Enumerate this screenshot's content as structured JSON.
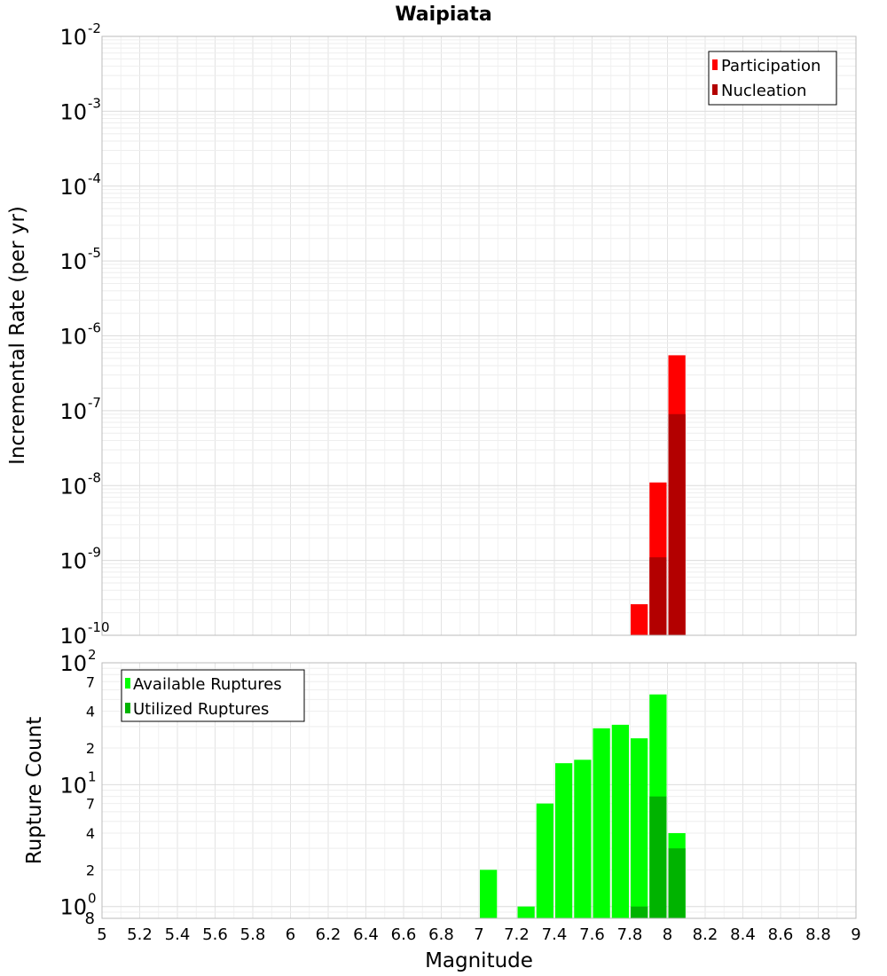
{
  "title": "Waipiata",
  "xlabel": "Magnitude",
  "x_ticks": [
    "5",
    "5.2",
    "5.4",
    "5.6",
    "5.8",
    "6",
    "6.2",
    "6.4",
    "6.6",
    "6.8",
    "7",
    "7.2",
    "7.4",
    "7.6",
    "7.8",
    "8",
    "8.2",
    "8.4",
    "8.6",
    "8.8",
    "9"
  ],
  "colors": {
    "participation": "#ff0000",
    "nucleation": "#b30000",
    "available": "#00ff00",
    "utilized": "#00b300",
    "grid": "#e6e6e6",
    "border": "#bbbbbb"
  },
  "chart_data": [
    {
      "type": "bar",
      "title": "Waipiata",
      "xlabel": "Magnitude",
      "ylabel": "Incremental Rate (per yr)",
      "xlim": [
        5,
        9
      ],
      "ylim": [
        1e-10,
        0.01
      ],
      "y_scale": "log",
      "grid": true,
      "legend_position": "top-right",
      "y_tick_exponents": [
        "-2",
        "-3",
        "-4",
        "-5",
        "-6",
        "-7",
        "-8",
        "-9",
        "-10"
      ],
      "bin_width": 0.1,
      "x": [
        7.85,
        7.95,
        8.05
      ],
      "series": [
        {
          "name": "Participation",
          "values": [
            2.6e-10,
            1.1e-08,
            5.5e-07
          ]
        },
        {
          "name": "Nucleation",
          "values": [
            0,
            1.1e-09,
            9e-08
          ]
        }
      ]
    },
    {
      "type": "bar",
      "xlabel": "Magnitude",
      "ylabel": "Rupture Count",
      "xlim": [
        5,
        9
      ],
      "ylim": [
        0.8,
        100
      ],
      "y_scale": "log",
      "grid": true,
      "legend_position": "top-left",
      "y_major_ticks": [
        {
          "value": 100,
          "exp": "2"
        },
        {
          "value": 10,
          "exp": "1"
        },
        {
          "value": 1,
          "exp": "0"
        }
      ],
      "y_minor_ticks": [
        {
          "value": 70,
          "label": "7"
        },
        {
          "value": 40,
          "label": "4"
        },
        {
          "value": 20,
          "label": "2"
        },
        {
          "value": 7,
          "label": "7"
        },
        {
          "value": 4,
          "label": "4"
        },
        {
          "value": 2,
          "label": "2"
        },
        {
          "value": 0.8,
          "label": "8"
        }
      ],
      "bin_width": 0.1,
      "x": [
        7.05,
        7.25,
        7.35,
        7.45,
        7.55,
        7.65,
        7.75,
        7.85,
        7.95,
        8.05
      ],
      "series": [
        {
          "name": "Available Ruptures",
          "values": [
            2,
            1,
            7,
            15,
            16,
            29,
            31,
            24,
            55,
            4
          ]
        },
        {
          "name": "Utilized Ruptures",
          "values": [
            0,
            0,
            0,
            0,
            0,
            0,
            0,
            1,
            8,
            3
          ]
        }
      ]
    }
  ]
}
